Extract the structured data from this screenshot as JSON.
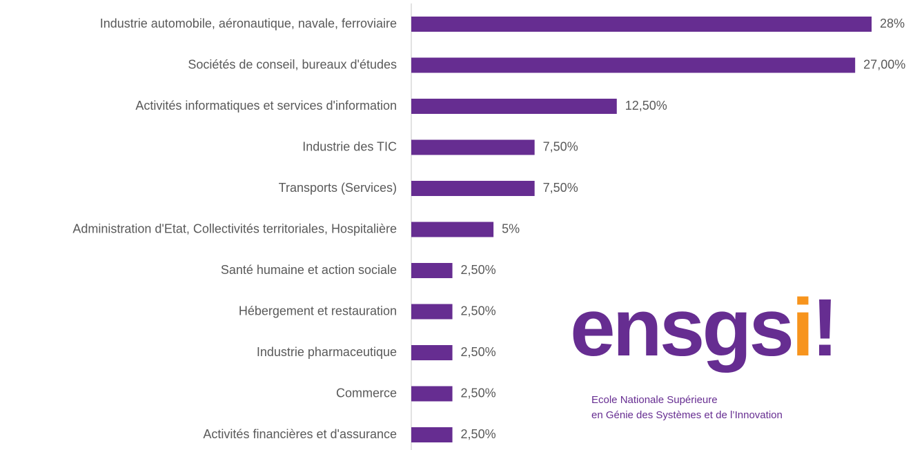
{
  "chart_data": {
    "type": "barh",
    "categories": [
      "Industrie automobile, aéronautique, navale, ferroviaire",
      "Sociétés de conseil, bureaux d'études",
      "Activités informatiques et services d'information",
      "Industrie des TIC",
      "Transports (Services)",
      "Administration d'Etat, Collectivités territoriales, Hospitalière",
      "Santé humaine et action sociale",
      "Hébergement et restauration",
      "Industrie pharmaceutique",
      "Commerce",
      "Activités financières et d'assurance"
    ],
    "values": [
      28,
      27,
      12.5,
      7.5,
      7.5,
      5,
      2.5,
      2.5,
      2.5,
      2.5,
      2.5
    ],
    "value_labels": [
      "28%",
      "27,00%",
      "12,50%",
      "7,50%",
      "7,50%",
      "5%",
      "2,50%",
      "2,50%",
      "2,50%",
      "2,50%",
      "2,50%"
    ],
    "color": "#662d91",
    "logo": {
      "wordmark": [
        {
          "text": "ensgs",
          "color": "#662d91"
        },
        {
          "text": "i",
          "color": "#f7941d"
        },
        {
          "text": "!",
          "color": "#662d91"
        }
      ],
      "tagline": [
        "Ecole Nationale Supérieure",
        "en Génie des Systèmes et de l’Innovation"
      ]
    }
  }
}
